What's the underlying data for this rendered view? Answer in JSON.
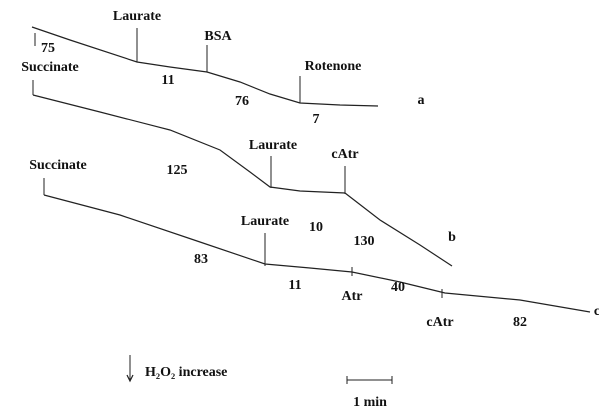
{
  "traces": [
    {
      "letter": "a",
      "events": [
        "Laurate",
        "BSA",
        "Rotenone"
      ],
      "rates": [
        "75",
        "11",
        "76",
        "7"
      ]
    },
    {
      "letter": "b",
      "events": [
        "Succinate",
        "Laurate",
        "cAtr"
      ],
      "rates": [
        "125",
        "10",
        "130"
      ]
    },
    {
      "letter": "c",
      "events": [
        "Succinate",
        "Laurate",
        "Atr",
        "cAtr"
      ],
      "rates": [
        "83",
        "11",
        "40",
        "82"
      ]
    }
  ],
  "legend": {
    "arrow_label": "H₂O₂ increase",
    "scale_label": "1 min"
  }
}
